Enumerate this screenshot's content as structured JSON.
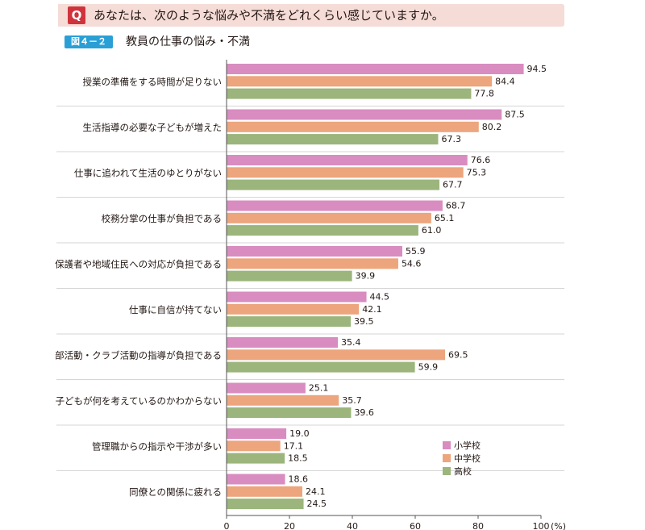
{
  "question": {
    "mark": "Q",
    "text": "あなたは、次のような悩みや不満をどれくらい感じていますか。"
  },
  "figure": {
    "label": "図４－２",
    "title": "教員の仕事の悩み・不満"
  },
  "chart_data": {
    "type": "bar",
    "orientation": "horizontal",
    "categories": [
      "授業の準備をする時間が足りない",
      "生活指導の必要な子どもが増えた",
      "仕事に追われて生活のゆとりがない",
      "校務分掌の仕事が負担である",
      "保護者や地域住民への対応が負担である",
      "仕事に自信が持てない",
      "部活動・クラブ活動の指導が負担である",
      "子どもが何を考えているのかわからない",
      "管理職からの指示や干渉が多い",
      "同僚との関係に疲れる"
    ],
    "series": [
      {
        "name": "小学校",
        "color": "#d98cc0",
        "values": [
          94.5,
          87.5,
          76.6,
          68.7,
          55.9,
          44.5,
          35.4,
          25.1,
          19.0,
          18.6
        ]
      },
      {
        "name": "中学校",
        "color": "#eca57d",
        "values": [
          84.4,
          80.2,
          75.3,
          65.1,
          54.6,
          42.1,
          69.5,
          35.7,
          17.1,
          24.1
        ]
      },
      {
        "name": "高校",
        "color": "#9bb57c",
        "values": [
          77.8,
          67.3,
          67.7,
          61.0,
          39.9,
          39.5,
          59.9,
          39.6,
          18.5,
          24.5
        ]
      }
    ],
    "value_labels": [
      [
        "94.5",
        "87.5",
        "76.6",
        "68.7",
        "55.9",
        "44.5",
        "35.4",
        "25.1",
        "19.0",
        "18.6"
      ],
      [
        "84.4",
        "80.2",
        "75.3",
        "65.1",
        "54.6",
        "42.1",
        "69.5",
        "35.7",
        "17.1",
        "24.1"
      ],
      [
        "77.8",
        "67.3",
        "67.7",
        "61.0",
        "39.9",
        "39.5",
        "59.9",
        "39.6",
        "18.5",
        "24.5"
      ]
    ],
    "xlim": [
      0,
      100
    ],
    "xticks": [
      "0",
      "20",
      "40",
      "60",
      "80",
      "100"
    ],
    "xunit": "(%)",
    "legend_position": "bottom-right",
    "grid": "horizontal separators between categories"
  }
}
